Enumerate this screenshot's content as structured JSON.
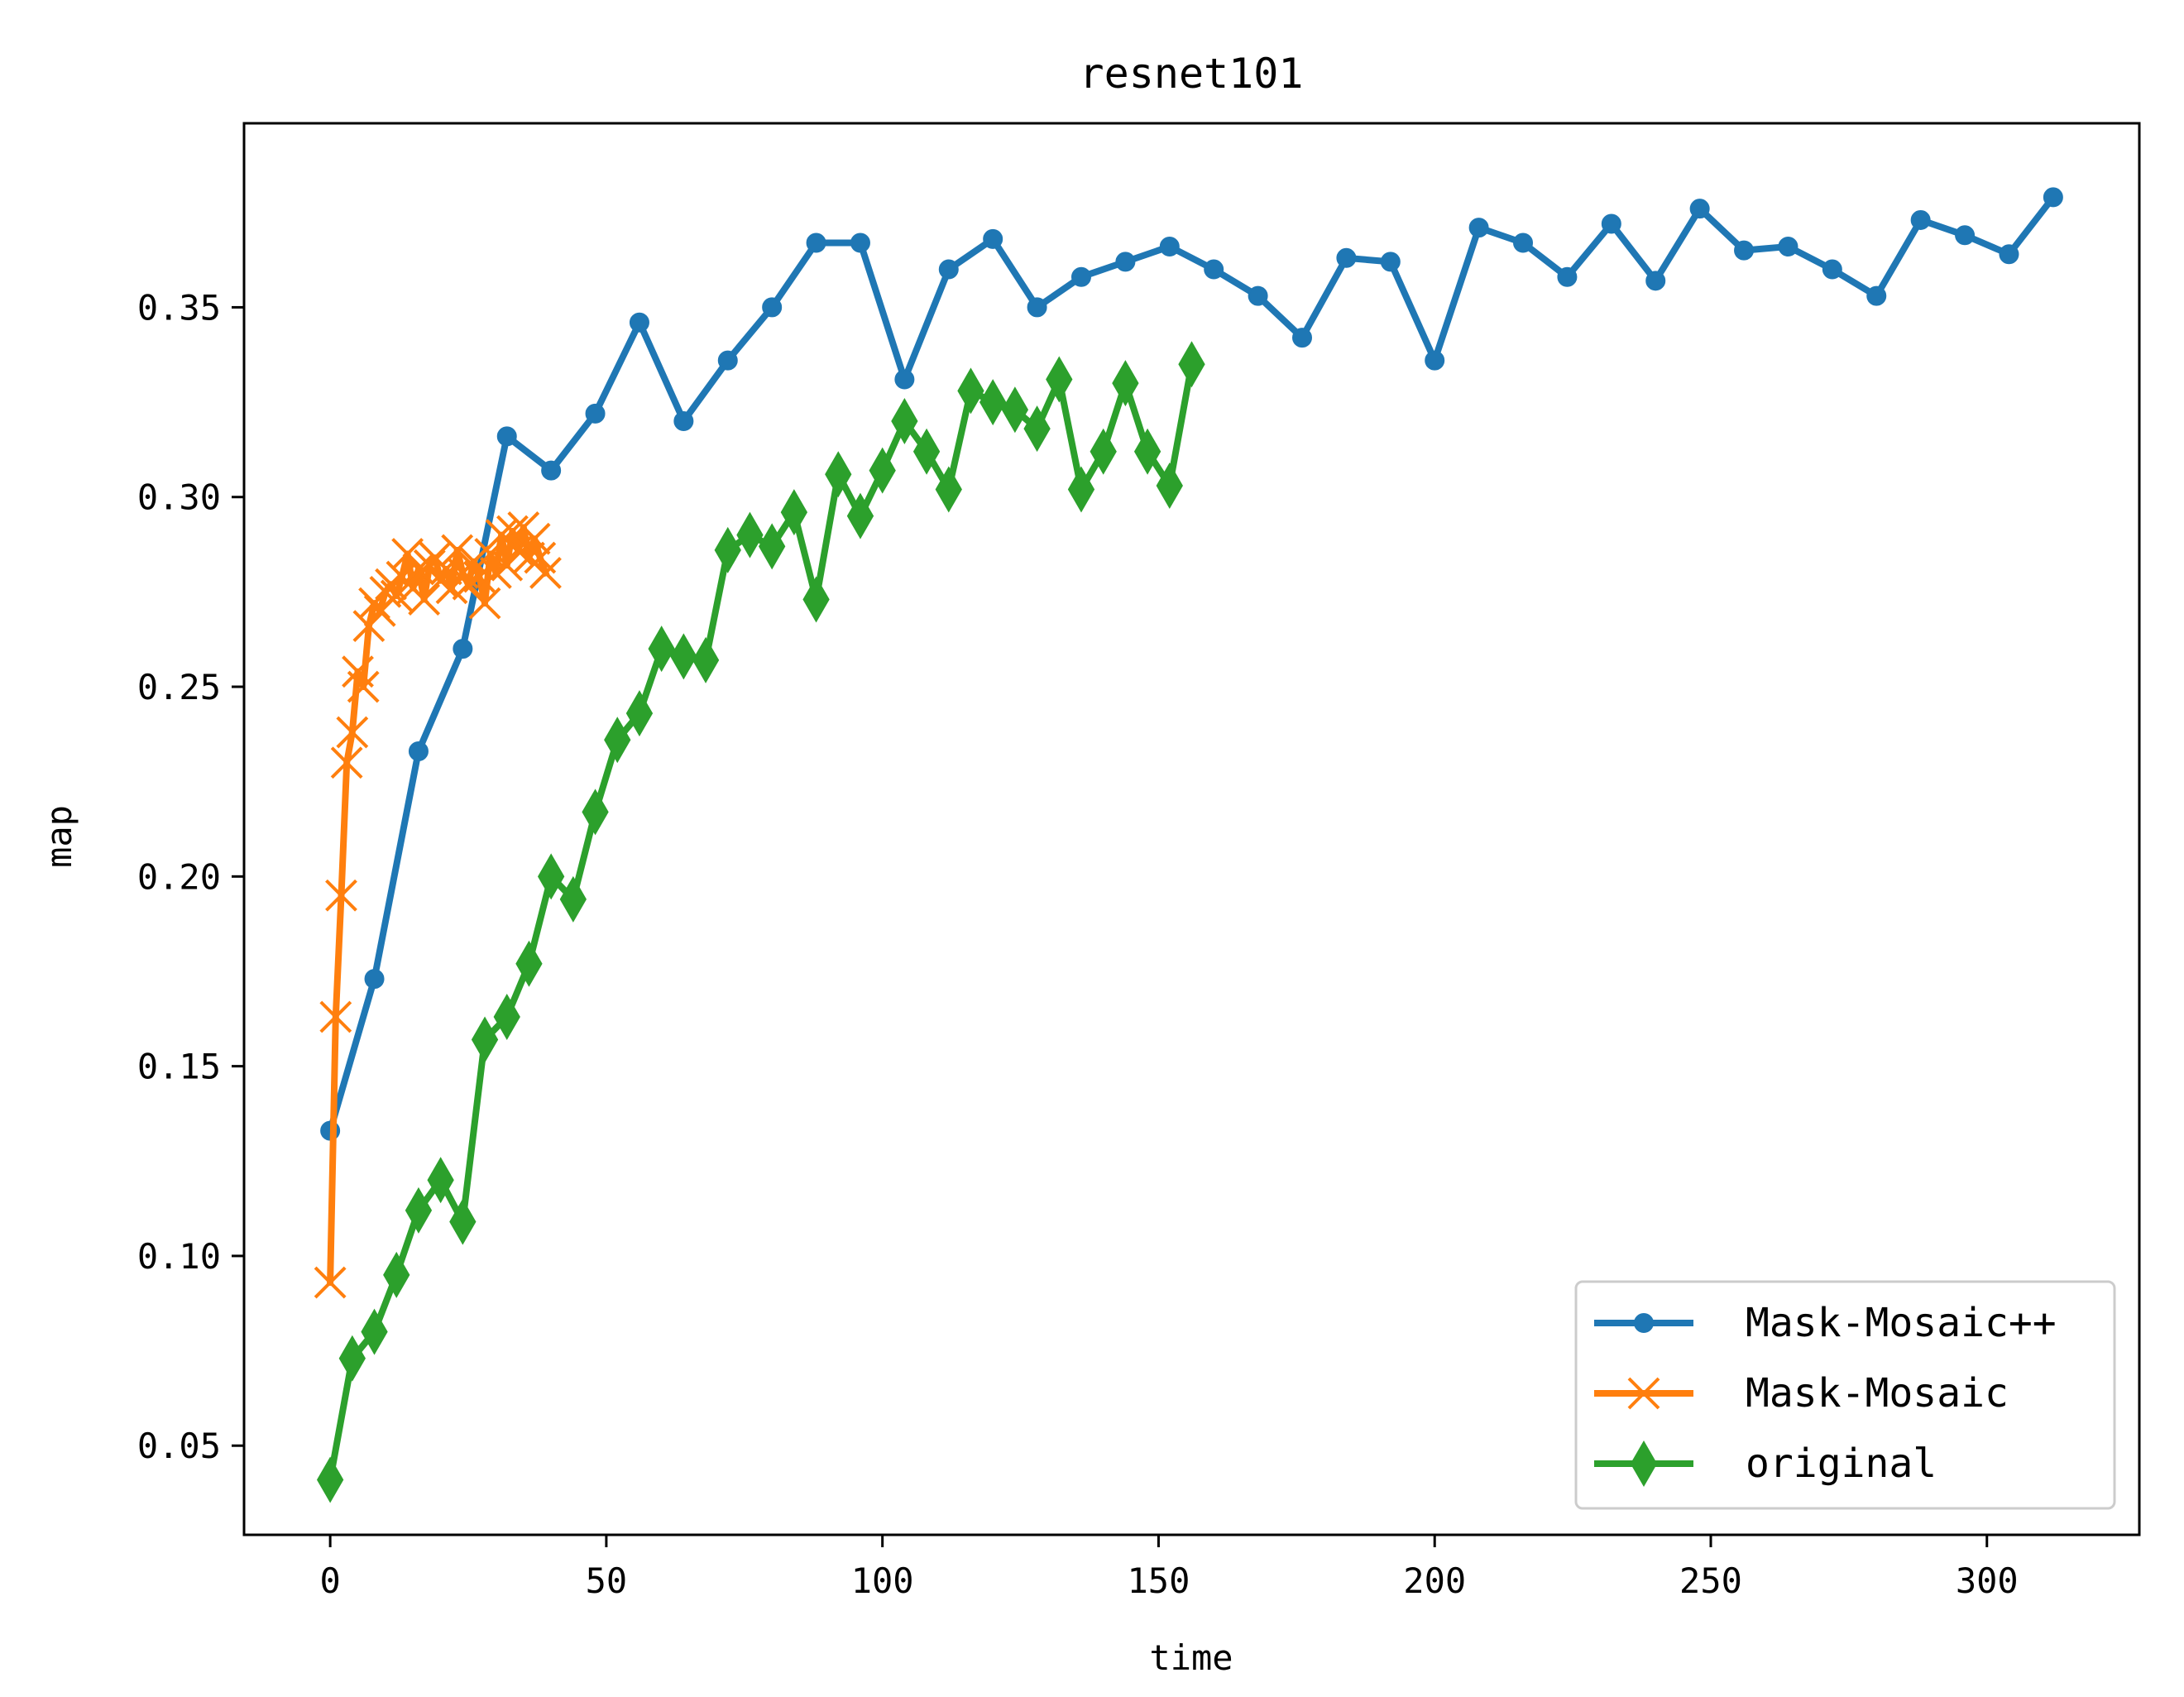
{
  "chart_data": {
    "type": "line",
    "title": "resnet101",
    "xlabel": "time",
    "ylabel": "map",
    "xlim": [
      -15.6,
      327.6
    ],
    "ylim": [
      0.0265,
      0.3985
    ],
    "xticks": [
      0,
      50,
      100,
      150,
      200,
      250,
      300
    ],
    "xtick_labels": [
      "0",
      "50",
      "100",
      "150",
      "200",
      "250",
      "300"
    ],
    "yticks": [
      0.05,
      0.1,
      0.15,
      0.2,
      0.25,
      0.3,
      0.35
    ],
    "ytick_labels": [
      "0.05",
      "0.10",
      "0.15",
      "0.20",
      "0.25",
      "0.30",
      "0.35"
    ],
    "grid": false,
    "legend_position": "lower right",
    "series": [
      {
        "name": "Mask-Mosaic++",
        "color": "#1f77b4",
        "marker": "dot",
        "x": [
          0,
          8,
          16,
          24,
          32,
          40,
          48,
          56,
          64,
          72,
          80,
          88,
          96,
          104,
          112,
          120,
          128,
          136,
          144,
          152,
          160,
          168,
          176,
          184,
          192,
          200,
          208,
          216,
          224,
          232,
          240,
          248,
          256,
          264,
          272,
          280,
          288,
          296,
          304,
          312
        ],
        "y": [
          0.133,
          0.173,
          0.233,
          0.26,
          0.316,
          0.307,
          0.322,
          0.346,
          0.32,
          0.336,
          0.35,
          0.367,
          0.367,
          0.331,
          0.36,
          0.368,
          0.35,
          0.358,
          0.362,
          0.366,
          0.36,
          0.353,
          0.342,
          0.363,
          0.362,
          0.336,
          0.371,
          0.367,
          0.358,
          0.372,
          0.357,
          0.376,
          0.365,
          0.366,
          0.36,
          0.353,
          0.373,
          0.369,
          0.364,
          0.379
        ]
      },
      {
        "name": "Mask-Mosaic",
        "color": "#ff7f0e",
        "marker": "x",
        "x": [
          0,
          1,
          2,
          3,
          4,
          5,
          6,
          7,
          8,
          9,
          10,
          11,
          12,
          13,
          14,
          15,
          16,
          17,
          18,
          19,
          20,
          21,
          22,
          23,
          24,
          25,
          26,
          27,
          28,
          29,
          30,
          31,
          32,
          33,
          34,
          35,
          36,
          37,
          38,
          39
        ],
        "y": [
          0.093,
          0.163,
          0.195,
          0.23,
          0.238,
          0.254,
          0.25,
          0.266,
          0.272,
          0.27,
          0.275,
          0.277,
          0.274,
          0.279,
          0.285,
          0.276,
          0.281,
          0.273,
          0.282,
          0.284,
          0.278,
          0.281,
          0.276,
          0.286,
          0.28,
          0.277,
          0.283,
          0.279,
          0.272,
          0.285,
          0.28,
          0.29,
          0.282,
          0.291,
          0.286,
          0.292,
          0.284,
          0.289,
          0.284,
          0.28
        ]
      },
      {
        "name": "original",
        "color": "#2ca02c",
        "marker": "diamond",
        "x": [
          0,
          4,
          8,
          12,
          16,
          20,
          24,
          28,
          32,
          36,
          40,
          44,
          48,
          52,
          56,
          60,
          64,
          68,
          72,
          76,
          80,
          84,
          88,
          92,
          96,
          100,
          104,
          108,
          112,
          116,
          120,
          124,
          128,
          132,
          136,
          140,
          144,
          148,
          152,
          156
        ],
        "y": [
          0.041,
          0.073,
          0.08,
          0.095,
          0.112,
          0.12,
          0.109,
          0.157,
          0.163,
          0.177,
          0.2,
          0.194,
          0.217,
          0.236,
          0.243,
          0.26,
          0.258,
          0.257,
          0.286,
          0.29,
          0.287,
          0.296,
          0.273,
          0.306,
          0.295,
          0.307,
          0.32,
          0.312,
          0.302,
          0.328,
          0.325,
          0.323,
          0.318,
          0.331,
          0.302,
          0.312,
          0.33,
          0.312,
          0.303,
          0.335
        ]
      }
    ]
  }
}
